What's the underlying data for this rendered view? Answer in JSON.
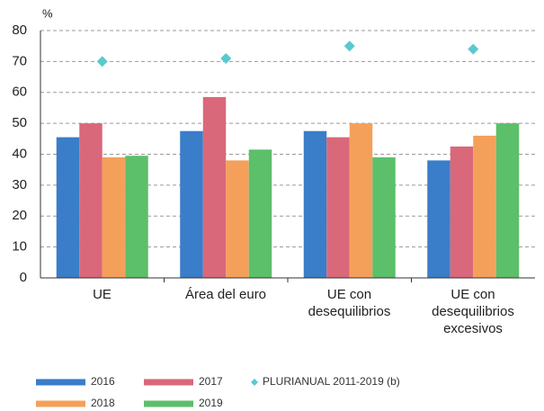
{
  "chart_data": {
    "type": "bar",
    "ylabel": "%",
    "categories": [
      "UE",
      "Área del euro",
      "UE con\ndesequilibrios",
      "UE con\ndesequilibrios\nexcesivos"
    ],
    "series": [
      {
        "name": "2016",
        "color": "#3a7dc9",
        "values": [
          45.5,
          47.5,
          47.5,
          38
        ]
      },
      {
        "name": "2017",
        "color": "#d9687a",
        "values": [
          50,
          58.5,
          45.5,
          42.5
        ]
      },
      {
        "name": "2018",
        "color": "#f5a05a",
        "values": [
          39,
          38,
          50,
          46
        ]
      },
      {
        "name": "2019",
        "color": "#5cbf6a",
        "values": [
          39.5,
          41.5,
          39,
          50
        ]
      },
      {
        "name": "PLURIANUAL 2011-2019 (b)",
        "color": "#5bc8d0",
        "type": "scatter",
        "values": [
          70,
          71,
          75,
          74
        ]
      }
    ],
    "ylim": [
      0,
      80
    ],
    "yticks": [
      0,
      10,
      20,
      30,
      40,
      50,
      60,
      70,
      80
    ],
    "grid": true
  }
}
